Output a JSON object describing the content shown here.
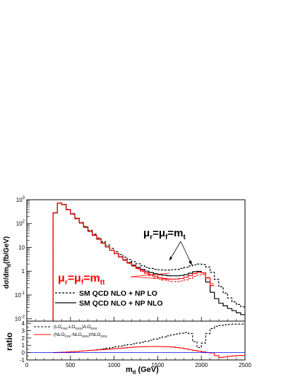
{
  "chart_data": {
    "type": "line",
    "style": "step-histogram",
    "upper_panel": {
      "ylabel": "dσ/dm",
      "ylabel_sub": "tt̄",
      "ylabel_unit": "(fb/GeV)",
      "yscale": "log",
      "ylim": [
        0.008,
        1000
      ],
      "y_ticks": [
        {
          "v": 0.01,
          "base": "10",
          "exp": "-2"
        },
        {
          "v": 0.1,
          "base": "10",
          "exp": "-1"
        },
        {
          "v": 1,
          "base": "1",
          "exp": ""
        },
        {
          "v": 10,
          "base": "10",
          "exp": ""
        },
        {
          "v": 100,
          "base": "10",
          "exp": "2"
        },
        {
          "v": 1000,
          "base": "10",
          "exp": "3"
        }
      ],
      "annotation_mt": {
        "mu": "μ",
        "sub_r": "r",
        "eq": "=",
        "sub_f": "f",
        "eq2": "=m",
        "sub_t": "t",
        "color": "#000000"
      },
      "annotation_mtt": {
        "mu": "μ",
        "sub_r": "r",
        "eq": "=",
        "sub_f": "f",
        "eq2": "=m",
        "sub_t": "tt",
        "color": "#ff0000"
      },
      "legend": [
        {
          "label": "SM QCD NLO + NP LO",
          "dash": "dashed"
        },
        {
          "label": "SM QCD NLO + NP NLO",
          "dash": "solid"
        }
      ],
      "bin_edges": [
        300,
        350,
        400,
        450,
        500,
        550,
        600,
        650,
        700,
        750,
        800,
        850,
        900,
        950,
        1000,
        1050,
        1100,
        1150,
        1200,
        1250,
        1300,
        1350,
        1400,
        1450,
        1500,
        1550,
        1600,
        1650,
        1700,
        1750,
        1800,
        1850,
        1900,
        1950,
        2000,
        2050,
        2100,
        2150,
        2200,
        2250,
        2300,
        2350,
        2400,
        2450,
        2500
      ],
      "series": [
        {
          "name": "SM QCD NLO + NP NLO",
          "color": "#000000",
          "dash": "solid",
          "values": [
            280,
            720,
            620,
            380,
            250,
            160,
            105,
            70,
            47,
            32,
            22,
            15,
            10.5,
            7.5,
            5.4,
            4.0,
            3.0,
            2.3,
            1.8,
            1.45,
            1.2,
            1.0,
            0.88,
            0.78,
            0.72,
            0.68,
            0.65,
            0.64,
            0.64,
            0.66,
            0.72,
            0.82,
            0.95,
            0.98,
            0.85,
            0.35,
            0.13,
            0.07,
            0.045,
            0.035,
            0.027,
            0.022,
            0.018,
            0.015
          ]
        },
        {
          "name": "SM QCD NLO + NP LO",
          "color": "#000000",
          "dash": "dashed",
          "values": [
            285,
            730,
            640,
            395,
            262,
            170,
            112,
            76,
            52,
            36,
            25,
            17.5,
            12.5,
            9.0,
            6.6,
            5.0,
            3.9,
            3.1,
            2.5,
            2.05,
            1.7,
            1.45,
            1.3,
            1.2,
            1.15,
            1.12,
            1.12,
            1.15,
            1.2,
            1.3,
            1.45,
            1.65,
            1.85,
            2.0,
            1.9,
            1.5,
            0.9,
            0.45,
            0.22,
            0.12,
            0.075,
            0.052,
            0.04,
            0.032
          ]
        },
        {
          "name": "",
          "color": "#ff0000",
          "dash": "solid",
          "values": [
            282,
            725,
            630,
            385,
            255,
            163,
            107,
            72,
            48,
            33,
            22.5,
            15.5,
            10.8,
            7.6,
            5.4,
            3.95,
            2.9,
            2.2,
            1.68,
            1.32,
            1.05,
            0.86,
            0.72,
            0.62,
            0.55,
            0.5,
            0.47,
            0.46,
            0.47,
            0.5,
            0.56,
            0.66,
            0.8,
            0.9,
            0.85,
            0.52,
            0.25
          ]
        },
        {
          "name": "",
          "color": "#ff0000",
          "dash": "dashed",
          "values": [
            283,
            728,
            635,
            390,
            258,
            166,
            109,
            73,
            49,
            33.5,
            22.8,
            15.6,
            10.9,
            7.65,
            5.45,
            3.9,
            2.85,
            2.12,
            1.6,
            1.24,
            0.97,
            0.78,
            0.64,
            0.54,
            0.47,
            0.42,
            0.39,
            0.37,
            0.37,
            0.39,
            0.43,
            0.5,
            0.6,
            0.7,
            0.72,
            0.55,
            0.3
          ]
        }
      ]
    },
    "lower_panel": {
      "ylabel": "ratio",
      "ylim": [
        -1,
        4.3
      ],
      "y_ticks": [
        -1,
        0,
        1,
        2,
        3,
        4
      ],
      "legend": [
        {
          "num": "LO",
          "num_sub": "FSS",
          "den": "LO",
          "den_sub": "DSS",
          "color": "#000000",
          "dash": "dashed"
        },
        {
          "num": "NLO",
          "num_sub": "FSS",
          "den": "NLO",
          "den_sub": "DSS",
          "color": "#ff0000",
          "dash": "solid"
        }
      ],
      "series": [
        {
          "name": "LO ratio",
          "color": "#000000",
          "dash": "dashed",
          "values": [
            0.02,
            0.03,
            0.05,
            0.08,
            0.12,
            0.16,
            0.2,
            0.25,
            0.3,
            0.35,
            0.42,
            0.5,
            0.6,
            0.7,
            0.8,
            0.9,
            1.0,
            1.1,
            1.2,
            1.3,
            1.4,
            1.55,
            1.7,
            1.85,
            2.0,
            2.15,
            2.3,
            2.45,
            2.55,
            2.65,
            2.75,
            2.6,
            1.5,
            0.7,
            1.3,
            2.6,
            3.3,
            3.6,
            3.7,
            3.8,
            3.85,
            3.9,
            3.9,
            3.9
          ]
        },
        {
          "name": "NLO ratio",
          "color": "#ff0000",
          "dash": "solid",
          "values": [
            0.0,
            0.02,
            0.05,
            0.08,
            0.12,
            0.15,
            0.2,
            0.25,
            0.3,
            0.34,
            0.38,
            0.42,
            0.46,
            0.5,
            0.55,
            0.6,
            0.65,
            0.7,
            0.74,
            0.78,
            0.8,
            0.82,
            0.83,
            0.84,
            0.84,
            0.82,
            0.8,
            0.76,
            0.7,
            0.62,
            0.52,
            0.4,
            0.3,
            0.2,
            0.1,
            0.0,
            -0.05,
            -0.4,
            -0.65,
            -0.6,
            -0.5,
            -0.45,
            -0.4,
            -0.38
          ]
        },
        {
          "name": "zero line",
          "color": "#0000ff",
          "dash": "solid",
          "values": [
            0,
            0
          ]
        }
      ]
    },
    "xlabel": "m",
    "xlabel_sub": "tt̄",
    "xlabel_unit": "(GeV)",
    "xlim": [
      0,
      2500
    ],
    "x_ticks": [
      0,
      500,
      1000,
      1500,
      2000,
      2500
    ]
  }
}
